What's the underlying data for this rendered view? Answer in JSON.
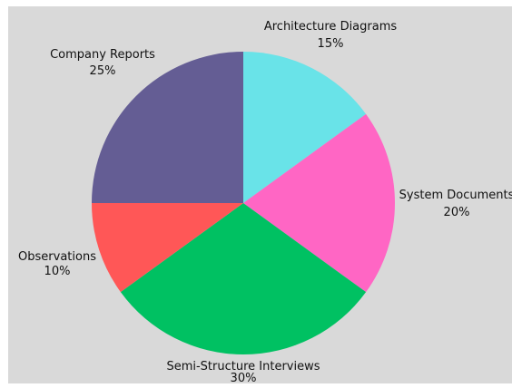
{
  "chart_data": {
    "type": "pie",
    "title": "",
    "background_color": "#d9d9d9",
    "slices": [
      {
        "label": "Architecture Diagrams",
        "value": 15,
        "value_label": "15%",
        "color": "#69e3e8"
      },
      {
        "label": "System Documents",
        "value": 20,
        "value_label": "20%",
        "color": "#ff66c4"
      },
      {
        "label": "Semi-Structure Interviews",
        "value": 30,
        "value_label": "30%",
        "color": "#00c162"
      },
      {
        "label": "Observations",
        "value": 10,
        "value_label": "10%",
        "color": "#ff5757"
      },
      {
        "label": "Company Reports",
        "value": 25,
        "value_label": "25%",
        "color": "#645d94"
      }
    ]
  }
}
